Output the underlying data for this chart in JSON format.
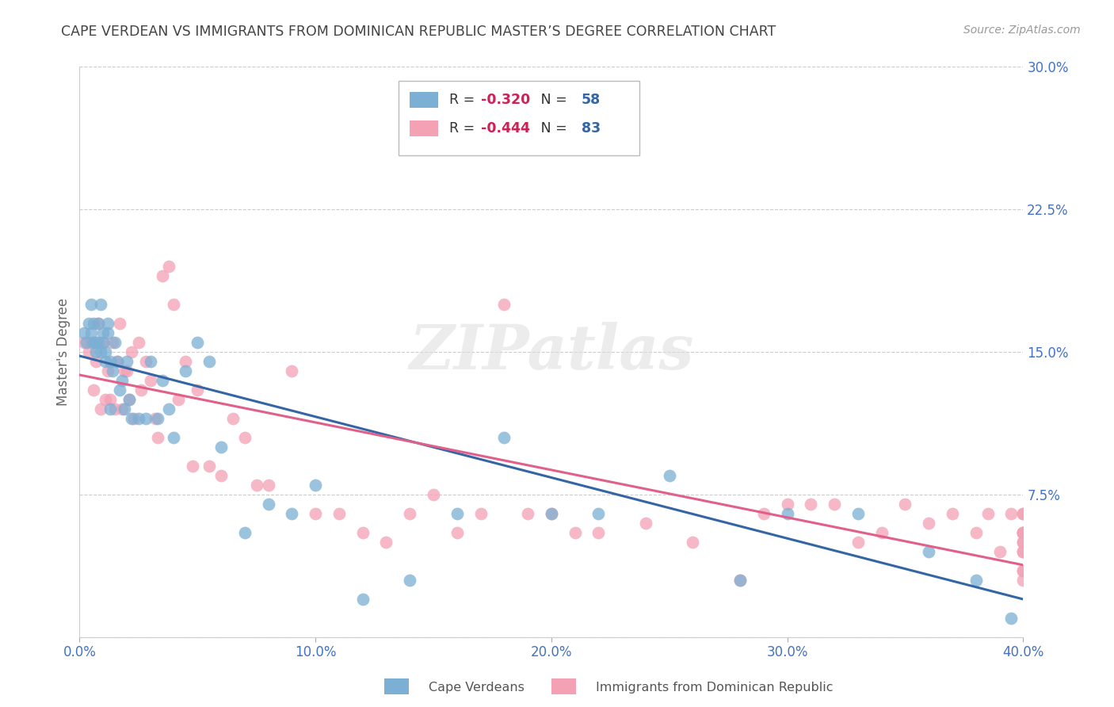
{
  "title": "CAPE VERDEAN VS IMMIGRANTS FROM DOMINICAN REPUBLIC MASTER’S DEGREE CORRELATION CHART",
  "source": "Source: ZipAtlas.com",
  "ylabel": "Master's Degree",
  "xmin": 0.0,
  "xmax": 0.4,
  "ymin": 0.0,
  "ymax": 0.3,
  "yticks": [
    0.0,
    0.075,
    0.15,
    0.225,
    0.3
  ],
  "ytick_labels": [
    "",
    "7.5%",
    "15.0%",
    "22.5%",
    "30.0%"
  ],
  "xtick_positions": [
    0.0,
    0.1,
    0.2,
    0.3,
    0.4
  ],
  "xtick_labels": [
    "0.0%",
    "10.0%",
    "20.0%",
    "30.0%",
    "40.0%"
  ],
  "blue_R": "-0.320",
  "blue_N": "58",
  "pink_R": "-0.444",
  "pink_N": "83",
  "legend_label_blue": "Cape Verdeans",
  "legend_label_pink": "Immigrants from Dominican Republic",
  "blue_color": "#7bafd4",
  "pink_color": "#f4a0b5",
  "blue_line_color": "#3465a4",
  "pink_line_color": "#e0608a",
  "watermark": "ZIPatlas",
  "blue_scatter_x": [
    0.002,
    0.003,
    0.004,
    0.005,
    0.005,
    0.006,
    0.006,
    0.007,
    0.007,
    0.008,
    0.008,
    0.009,
    0.009,
    0.01,
    0.01,
    0.011,
    0.011,
    0.012,
    0.012,
    0.013,
    0.013,
    0.014,
    0.015,
    0.016,
    0.017,
    0.018,
    0.019,
    0.02,
    0.021,
    0.022,
    0.025,
    0.028,
    0.03,
    0.033,
    0.035,
    0.038,
    0.04,
    0.045,
    0.05,
    0.055,
    0.06,
    0.07,
    0.08,
    0.09,
    0.1,
    0.12,
    0.14,
    0.16,
    0.18,
    0.2,
    0.22,
    0.25,
    0.28,
    0.3,
    0.33,
    0.36,
    0.38,
    0.395
  ],
  "blue_scatter_y": [
    0.16,
    0.155,
    0.165,
    0.175,
    0.16,
    0.155,
    0.165,
    0.15,
    0.155,
    0.155,
    0.165,
    0.15,
    0.175,
    0.155,
    0.16,
    0.15,
    0.145,
    0.16,
    0.165,
    0.145,
    0.12,
    0.14,
    0.155,
    0.145,
    0.13,
    0.135,
    0.12,
    0.145,
    0.125,
    0.115,
    0.115,
    0.115,
    0.145,
    0.115,
    0.135,
    0.12,
    0.105,
    0.14,
    0.155,
    0.145,
    0.1,
    0.055,
    0.07,
    0.065,
    0.08,
    0.02,
    0.03,
    0.065,
    0.105,
    0.065,
    0.065,
    0.085,
    0.03,
    0.065,
    0.065,
    0.045,
    0.03,
    0.01
  ],
  "pink_scatter_x": [
    0.002,
    0.004,
    0.005,
    0.006,
    0.007,
    0.008,
    0.009,
    0.01,
    0.011,
    0.012,
    0.013,
    0.014,
    0.015,
    0.016,
    0.017,
    0.018,
    0.019,
    0.02,
    0.021,
    0.022,
    0.023,
    0.025,
    0.026,
    0.028,
    0.03,
    0.032,
    0.033,
    0.035,
    0.038,
    0.04,
    0.042,
    0.045,
    0.048,
    0.05,
    0.055,
    0.06,
    0.065,
    0.07,
    0.075,
    0.08,
    0.09,
    0.1,
    0.11,
    0.12,
    0.13,
    0.14,
    0.15,
    0.16,
    0.17,
    0.18,
    0.19,
    0.2,
    0.21,
    0.22,
    0.24,
    0.26,
    0.28,
    0.29,
    0.3,
    0.31,
    0.32,
    0.33,
    0.34,
    0.35,
    0.36,
    0.37,
    0.38,
    0.385,
    0.39,
    0.395,
    0.4,
    0.4,
    0.4,
    0.4,
    0.4,
    0.4,
    0.4,
    0.4,
    0.4,
    0.4,
    0.4,
    0.4,
    0.4
  ],
  "pink_scatter_y": [
    0.155,
    0.15,
    0.155,
    0.13,
    0.145,
    0.165,
    0.12,
    0.155,
    0.125,
    0.14,
    0.125,
    0.155,
    0.12,
    0.145,
    0.165,
    0.12,
    0.14,
    0.14,
    0.125,
    0.15,
    0.115,
    0.155,
    0.13,
    0.145,
    0.135,
    0.115,
    0.105,
    0.19,
    0.195,
    0.175,
    0.125,
    0.145,
    0.09,
    0.13,
    0.09,
    0.085,
    0.115,
    0.105,
    0.08,
    0.08,
    0.14,
    0.065,
    0.065,
    0.055,
    0.05,
    0.065,
    0.075,
    0.055,
    0.065,
    0.175,
    0.065,
    0.065,
    0.055,
    0.055,
    0.06,
    0.05,
    0.03,
    0.065,
    0.07,
    0.07,
    0.07,
    0.05,
    0.055,
    0.07,
    0.06,
    0.065,
    0.055,
    0.065,
    0.045,
    0.065,
    0.055,
    0.055,
    0.055,
    0.045,
    0.03,
    0.065,
    0.055,
    0.035,
    0.05,
    0.065,
    0.035,
    0.045,
    0.05
  ],
  "blue_line_x0": 0.0,
  "blue_line_x1": 0.4,
  "blue_line_y0": 0.148,
  "blue_line_y1": 0.02,
  "pink_line_x0": 0.0,
  "pink_line_x1": 0.4,
  "pink_line_y0": 0.138,
  "pink_line_y1": 0.038,
  "background_color": "#ffffff",
  "grid_color": "#cccccc",
  "title_color": "#444444",
  "axis_label_color": "#4472c4",
  "ylabel_color": "#666666"
}
